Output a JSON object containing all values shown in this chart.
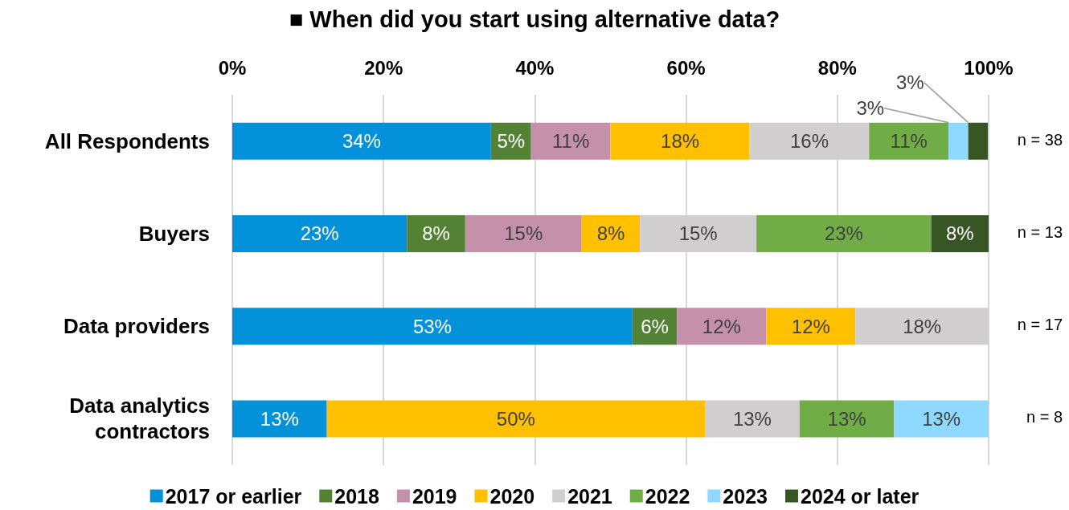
{
  "chart_data": {
    "type": "bar",
    "orientation": "horizontal",
    "stacked": true,
    "title": "■ When did you start using alternative data?",
    "categories": [
      "All Respondents",
      "Buyers",
      "Data providers",
      "Data analytics contractors"
    ],
    "series": [
      {
        "name": "2017 or earlier",
        "color": "#0391d9",
        "values": [
          34.2,
          23.1,
          52.9,
          12.5
        ],
        "value_labels": [
          "34%",
          "23%",
          "53%",
          "13%"
        ]
      },
      {
        "name": "2018",
        "color": "#548235",
        "values": [
          5.3,
          7.7,
          5.9,
          null
        ],
        "value_labels": [
          "5%",
          "8%",
          "6%",
          null
        ]
      },
      {
        "name": "2019",
        "color": "#c490aa",
        "values": [
          10.5,
          15.4,
          11.8,
          null
        ],
        "value_labels": [
          "11%",
          "15%",
          "12%",
          null
        ]
      },
      {
        "name": "2020",
        "color": "#ffc000",
        "values": [
          18.4,
          7.7,
          11.8,
          50
        ],
        "value_labels": [
          "18%",
          "8%",
          "12%",
          "50%"
        ]
      },
      {
        "name": "2021",
        "color": "#d0cece",
        "values": [
          15.8,
          15.4,
          17.6,
          12.5
        ],
        "value_labels": [
          "16%",
          "15%",
          "18%",
          "13%"
        ]
      },
      {
        "name": "2022",
        "color": "#70ad47",
        "values": [
          10.5,
          23.1,
          null,
          12.5
        ],
        "value_labels": [
          "11%",
          "23%",
          null,
          "13%"
        ]
      },
      {
        "name": "2023",
        "color": "#8fd8ff",
        "values": [
          2.6,
          null,
          null,
          12.5
        ],
        "value_labels": [
          "3%",
          null,
          null,
          "13%"
        ]
      },
      {
        "name": "2024 or later",
        "color": "#375623",
        "values": [
          2.6,
          7.6,
          null,
          null
        ],
        "value_labels": [
          "3%",
          "8%",
          null,
          null
        ]
      }
    ],
    "xlim": [
      0,
      100
    ],
    "xticks": [
      {
        "value": 0,
        "label": "0%"
      },
      {
        "value": 20,
        "label": "20%"
      },
      {
        "value": 40,
        "label": "40%"
      },
      {
        "value": 60,
        "label": "60%"
      },
      {
        "value": 80,
        "label": "80%"
      },
      {
        "value": 100,
        "label": "100%"
      }
    ],
    "grid": "x",
    "legend": "bottom",
    "annotations": [
      "n = 38",
      "n = 13",
      "n = 17",
      "n = 8"
    ]
  }
}
